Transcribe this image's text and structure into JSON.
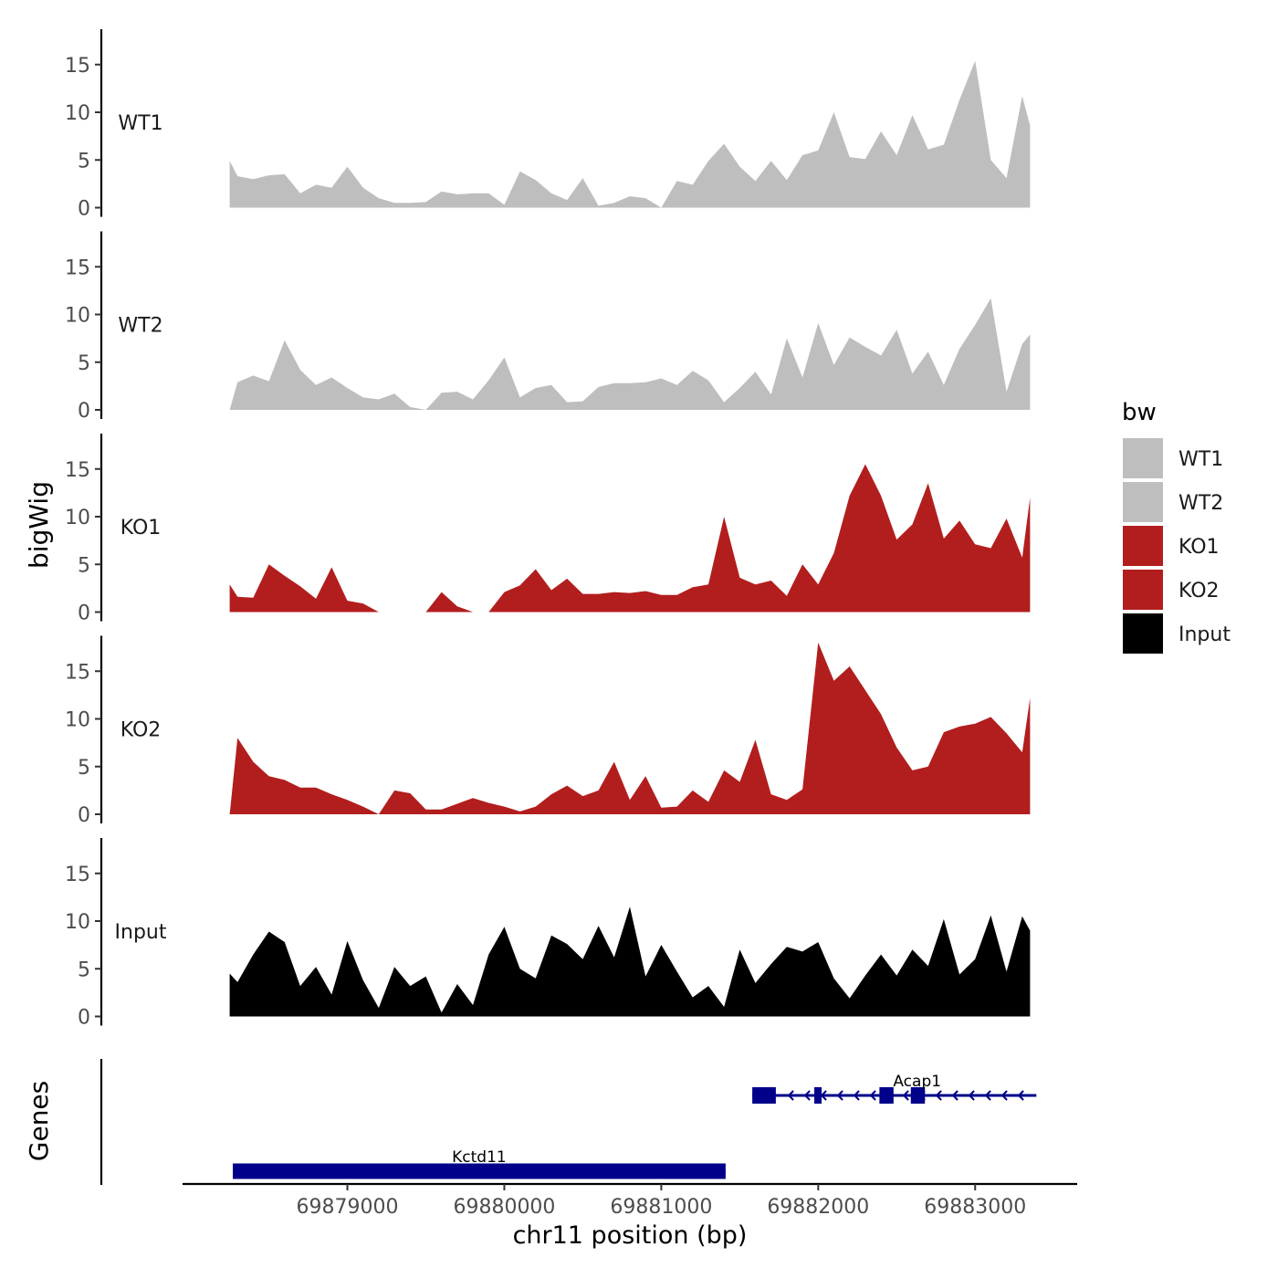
{
  "chart_data": {
    "type": "area",
    "xlabel": "chr11 position (bp)",
    "xlim": [
      69877950,
      69883650
    ],
    "x_ticks": [
      69879000,
      69880000,
      69881000,
      69882000,
      69883000
    ],
    "x_tick_labels": [
      "69879000",
      "69880000",
      "69881000",
      "69882000",
      "69883000"
    ],
    "track_ylabel": "bigWig",
    "ylim": [
      0,
      18.5
    ],
    "y_ticks": [
      0,
      5,
      10,
      15
    ],
    "y_tick_labels": [
      "0",
      "5",
      "10",
      "15"
    ],
    "grid": false,
    "legend": {
      "title": "bw",
      "position": "right",
      "entries": [
        {
          "label": "WT1",
          "color": "#bebebe"
        },
        {
          "label": "WT2",
          "color": "#bebebe"
        },
        {
          "label": "KO1",
          "color": "#b21e1e"
        },
        {
          "label": "KO2",
          "color": "#b21e1e"
        },
        {
          "label": "Input",
          "color": "#000000"
        }
      ]
    },
    "series": [
      {
        "name": "WT1",
        "color": "#bebebe",
        "x": [
          69878250,
          69878300,
          69878400,
          69878500,
          69878600,
          69878700,
          69878800,
          69878900,
          69879000,
          69879100,
          69879200,
          69879300,
          69879400,
          69879500,
          69879600,
          69879700,
          69879800,
          69879900,
          69880000,
          69880100,
          69880200,
          69880300,
          69880400,
          69880500,
          69880600,
          69880700,
          69880800,
          69880900,
          69881000,
          69881100,
          69881200,
          69881300,
          69881400,
          69881500,
          69881600,
          69881700,
          69881800,
          69881900,
          69882000,
          69882100,
          69882200,
          69882300,
          69882400,
          69882500,
          69882600,
          69882700,
          69882800,
          69882900,
          69883000,
          69883100,
          69883200,
          69883300,
          69883350
        ],
        "y": [
          4.9,
          3.3,
          3,
          3.4,
          3.5,
          1.5,
          2.4,
          2.1,
          4.3,
          2.1,
          1,
          0.5,
          0.5,
          0.6,
          1.7,
          1.4,
          1.5,
          1.5,
          0.3,
          3.8,
          2.9,
          1.5,
          0.8,
          3.1,
          0.2,
          0.5,
          1.2,
          1,
          0,
          2.8,
          2.4,
          4.9,
          6.7,
          4.3,
          2.8,
          4.9,
          2.9,
          5.5,
          6,
          10,
          5.3,
          5.1,
          8,
          5.5,
          9.7,
          6.1,
          6.6,
          11.3,
          15.4,
          5,
          3.1,
          11.7,
          8.6
        ]
      },
      {
        "name": "WT2",
        "color": "#bebebe",
        "x": [
          69878250,
          69878300,
          69878400,
          69878500,
          69878600,
          69878700,
          69878800,
          69878900,
          69879000,
          69879100,
          69879200,
          69879300,
          69879400,
          69879500,
          69879600,
          69879700,
          69879800,
          69879900,
          69880000,
          69880100,
          69880200,
          69880300,
          69880400,
          69880500,
          69880600,
          69880700,
          69880800,
          69880900,
          69881000,
          69881100,
          69881200,
          69881300,
          69881400,
          69881500,
          69881600,
          69881700,
          69881800,
          69881900,
          69882000,
          69882100,
          69882200,
          69882300,
          69882400,
          69882500,
          69882600,
          69882700,
          69882800,
          69882900,
          69883000,
          69883100,
          69883200,
          69883300,
          69883350
        ],
        "y": [
          0,
          2.9,
          3.6,
          3,
          7.3,
          4.2,
          2.6,
          3.4,
          2.3,
          1.3,
          1.1,
          1.7,
          0.3,
          0,
          1.8,
          1.9,
          1.1,
          3.1,
          5.5,
          1.3,
          2.3,
          2.6,
          0.8,
          0.9,
          2.4,
          2.8,
          2.8,
          2.9,
          3.3,
          2.6,
          4.1,
          3.1,
          0.8,
          2.3,
          4,
          1.6,
          7.5,
          3.4,
          9.1,
          4.7,
          7.6,
          6.6,
          5.7,
          8.4,
          3.8,
          6.1,
          2.6,
          6.4,
          8.9,
          11.7,
          1.9,
          6.9,
          7.9
        ]
      },
      {
        "name": "KO1",
        "color": "#b21e1e",
        "x": [
          69878250,
          69878300,
          69878400,
          69878500,
          69878600,
          69878700,
          69878800,
          69878900,
          69879000,
          69879100,
          69879200,
          69879300,
          69879400,
          69879500,
          69879600,
          69879700,
          69879800,
          69879900,
          69880000,
          69880100,
          69880200,
          69880300,
          69880400,
          69880500,
          69880600,
          69880700,
          69880800,
          69880900,
          69881000,
          69881100,
          69881200,
          69881300,
          69881400,
          69881500,
          69881600,
          69881700,
          69881800,
          69881900,
          69882000,
          69882100,
          69882200,
          69882300,
          69882400,
          69882500,
          69882600,
          69882700,
          69882800,
          69882900,
          69883000,
          69883100,
          69883200,
          69883300,
          69883350
        ],
        "y": [
          2.9,
          1.6,
          1.5,
          5,
          3.8,
          2.7,
          1.4,
          4.7,
          1.2,
          0.9,
          0,
          0,
          0,
          0,
          2.1,
          0.6,
          0,
          0,
          2.1,
          2.8,
          4.5,
          2.3,
          3.5,
          1.9,
          1.9,
          2.1,
          2,
          2.2,
          1.8,
          1.8,
          2.6,
          2.9,
          10,
          3.6,
          2.9,
          3.3,
          1.7,
          5,
          2.9,
          6.2,
          12.2,
          15.5,
          12.2,
          7.6,
          9.2,
          13.5,
          7.7,
          9.6,
          7.1,
          6.7,
          9.8,
          5.7,
          12
        ]
      },
      {
        "name": "KO2",
        "color": "#b21e1e",
        "x": [
          69878250,
          69878300,
          69878400,
          69878500,
          69878600,
          69878700,
          69878800,
          69878900,
          69879000,
          69879100,
          69879200,
          69879300,
          69879400,
          69879500,
          69879600,
          69879700,
          69879800,
          69879900,
          69880000,
          69880100,
          69880200,
          69880300,
          69880400,
          69880500,
          69880600,
          69880700,
          69880800,
          69880900,
          69881000,
          69881100,
          69881200,
          69881300,
          69881400,
          69881500,
          69881600,
          69881700,
          69881800,
          69881900,
          69882000,
          69882100,
          69882200,
          69882300,
          69882400,
          69882500,
          69882600,
          69882700,
          69882800,
          69882900,
          69883000,
          69883100,
          69883200,
          69883300,
          69883350
        ],
        "y": [
          0,
          8,
          5.5,
          4,
          3.6,
          2.8,
          2.8,
          2.1,
          1.5,
          0.8,
          0,
          2.5,
          2.2,
          0.5,
          0.5,
          1.1,
          1.7,
          1.2,
          0.8,
          0.3,
          0.8,
          2.1,
          3,
          1.9,
          2.5,
          5.5,
          1.5,
          4,
          0.7,
          0.8,
          2.5,
          1.3,
          4.6,
          3.4,
          7.8,
          2.1,
          1.5,
          2.6,
          18,
          14,
          15.5,
          13,
          10.5,
          7,
          4.6,
          5,
          8.6,
          9.2,
          9.5,
          10.2,
          8.5,
          6.5,
          12.2
        ]
      },
      {
        "name": "Input",
        "color": "#000000",
        "x": [
          69878250,
          69878300,
          69878400,
          69878500,
          69878600,
          69878700,
          69878800,
          69878900,
          69879000,
          69879100,
          69879200,
          69879300,
          69879400,
          69879500,
          69879600,
          69879700,
          69879800,
          69879900,
          69880000,
          69880100,
          69880200,
          69880300,
          69880400,
          69880500,
          69880600,
          69880700,
          69880800,
          69880900,
          69881000,
          69881100,
          69881200,
          69881300,
          69881400,
          69881500,
          69881600,
          69881700,
          69881800,
          69881900,
          69882000,
          69882100,
          69882200,
          69882300,
          69882400,
          69882500,
          69882600,
          69882700,
          69882800,
          69882900,
          69883000,
          69883100,
          69883200,
          69883300,
          69883350
        ],
        "y": [
          4.5,
          3.6,
          6.5,
          8.9,
          7.8,
          3.2,
          5.2,
          2.3,
          7.9,
          3.8,
          0.9,
          5.2,
          3.2,
          4.2,
          0.4,
          3.4,
          1.2,
          6.5,
          9.4,
          5,
          4,
          8.5,
          7.6,
          6,
          9.5,
          6.2,
          11.5,
          4.2,
          7.5,
          4.7,
          2,
          3.2,
          1,
          7,
          3.5,
          5.5,
          7.3,
          6.8,
          7.8,
          4,
          1.9,
          4.3,
          6.5,
          4.3,
          7,
          5.3,
          10.2,
          4.4,
          6,
          10.6,
          4.7,
          10.5,
          9
        ]
      }
    ],
    "track_labels": [
      "WT1",
      "WT2",
      "KO1",
      "KO2",
      "Input"
    ],
    "genes_ylabel": "Genes",
    "genes": [
      {
        "name": "Acap1",
        "start": 69881580,
        "end": 69883390,
        "strand": "-",
        "exons": [
          [
            69881580,
            69881730
          ],
          [
            69881975,
            69882020
          ],
          [
            69882390,
            69882480
          ],
          [
            69882590,
            69882680
          ]
        ]
      },
      {
        "name": "Kctd11",
        "start": 69878270,
        "end": 69881410,
        "strand": "+",
        "exons": [
          [
            69878270,
            69881410
          ]
        ]
      }
    ],
    "gene_color": "#00008b"
  }
}
